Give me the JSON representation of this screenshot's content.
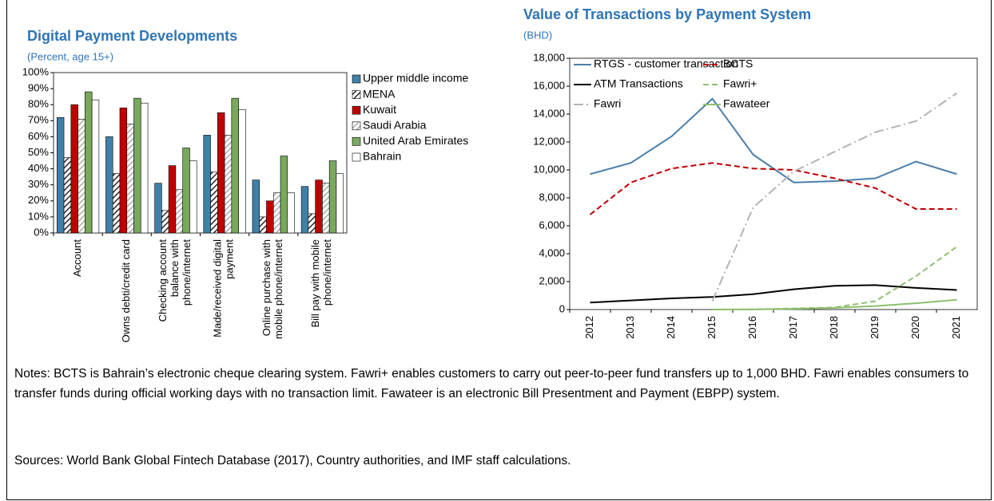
{
  "chart_data": [
    {
      "type": "bar",
      "title": "Digital Payment Developments",
      "subtitle": "(Percent, age 15+)",
      "categories": [
        "Account",
        "Owns debti/credit card",
        "Checking account\nbalance with\nphone/internet",
        "Made/received digital\npayment",
        "Online purchase with\nmobile phone/internet",
        "Bill pay with mobile\nphone/internet"
      ],
      "series": [
        {
          "name": "Upper middle income",
          "color": "#3f80a8",
          "values": [
            72,
            60,
            31,
            61,
            33,
            29
          ]
        },
        {
          "name": "MENA",
          "color": "#000000",
          "pattern": "hatch",
          "values": [
            47,
            37,
            14,
            38,
            10,
            12
          ]
        },
        {
          "name": "Kuwait",
          "color": "#c00000",
          "values": [
            80,
            78,
            42,
            75,
            20,
            33
          ]
        },
        {
          "name": "Saudi Arabia",
          "color": "#9a9a9a",
          "pattern": "hatch",
          "values": [
            71,
            68,
            27,
            61,
            25,
            31
          ]
        },
        {
          "name": "United Arab Emirates",
          "color": "#78a95c",
          "values": [
            88,
            84,
            53,
            84,
            48,
            45
          ]
        },
        {
          "name": "Bahrain",
          "color": "#ffffff",
          "values": [
            83,
            81,
            45,
            77,
            25,
            37
          ]
        }
      ],
      "ylim": [
        0,
        100
      ],
      "yticks": [
        {
          "value": 0,
          "label": "0%"
        },
        {
          "value": 10,
          "label": "10%"
        },
        {
          "value": 20,
          "label": "20%"
        },
        {
          "value": 30,
          "label": "30%"
        },
        {
          "value": 40,
          "label": "40%"
        },
        {
          "value": 50,
          "label": "50%"
        },
        {
          "value": 60,
          "label": "60%"
        },
        {
          "value": 70,
          "label": "70%"
        },
        {
          "value": 80,
          "label": "80%"
        },
        {
          "value": 90,
          "label": "90%"
        },
        {
          "value": 100,
          "label": "100%"
        }
      ],
      "grid": false,
      "legend": "top-right"
    },
    {
      "type": "line",
      "title": "Value of Transactions by Payment System",
      "subtitle": "(BHD)",
      "categories": [
        "2012",
        "2013",
        "2014",
        "2015",
        "2016",
        "2017",
        "2018",
        "2019",
        "2020",
        "2021"
      ],
      "series": [
        {
          "name": "RTGS - customer transaction",
          "color": "#4a7fab",
          "dash": "solid",
          "values": [
            9700,
            10500,
            12400,
            15100,
            11100,
            9100,
            9200,
            9400,
            10600,
            9700
          ]
        },
        {
          "name": "BCTS",
          "color": "#c00000",
          "dash": "dashed",
          "values": [
            6800,
            9100,
            10100,
            10500,
            10100,
            10000,
            9400,
            8700,
            7200,
            7200
          ]
        },
        {
          "name": "ATM Transactions",
          "color": "#000000",
          "dash": "solid",
          "values": [
            500,
            650,
            800,
            900,
            1100,
            1450,
            1700,
            1750,
            1550,
            1400
          ]
        },
        {
          "name": "Fawri+",
          "color": "#8dbf6e",
          "dash": "dashed",
          "values": [
            null,
            null,
            null,
            0,
            20,
            80,
            150,
            600,
            2400,
            4500
          ]
        },
        {
          "name": "Fawri",
          "color": "#b3b3b3",
          "dash": "dashdot",
          "values": [
            null,
            null,
            null,
            600,
            7300,
            9900,
            11300,
            12700,
            13500,
            15500
          ]
        },
        {
          "name": "Fawateer",
          "color": "#8dbf6e",
          "dash": "solid",
          "values": [
            null,
            null,
            null,
            0,
            10,
            50,
            120,
            250,
            450,
            700
          ]
        }
      ],
      "ylim": [
        0,
        18000
      ],
      "yticks": [
        0,
        {
          "value": 2000,
          "label": "2,000"
        },
        {
          "value": 4000,
          "label": "4,000"
        },
        {
          "value": 6000,
          "label": "6,000"
        },
        {
          "value": 8000,
          "label": "8,000"
        },
        {
          "value": 10000,
          "label": "10,000"
        },
        {
          "value": 12000,
          "label": "12,000"
        },
        {
          "value": 14000,
          "label": "14,000"
        },
        {
          "value": 16000,
          "label": "16,000"
        },
        {
          "value": 18000,
          "label": "18,000"
        }
      ],
      "grid": false,
      "legend": "top"
    }
  ],
  "notes": "Notes: BCTS is Bahrain’s electronic cheque clearing system. Fawri+ enables customers to carry out peer-to-peer fund transfers up to 1,000 BHD. Fawri enables consumers to transfer funds during official working days with no transaction limit. Fawateer is an electronic Bill Presentment and Payment (EBPP) system.",
  "sources": "Sources: World Bank Global Fintech Database (2017), Country authorities, and IMF staff calculations."
}
